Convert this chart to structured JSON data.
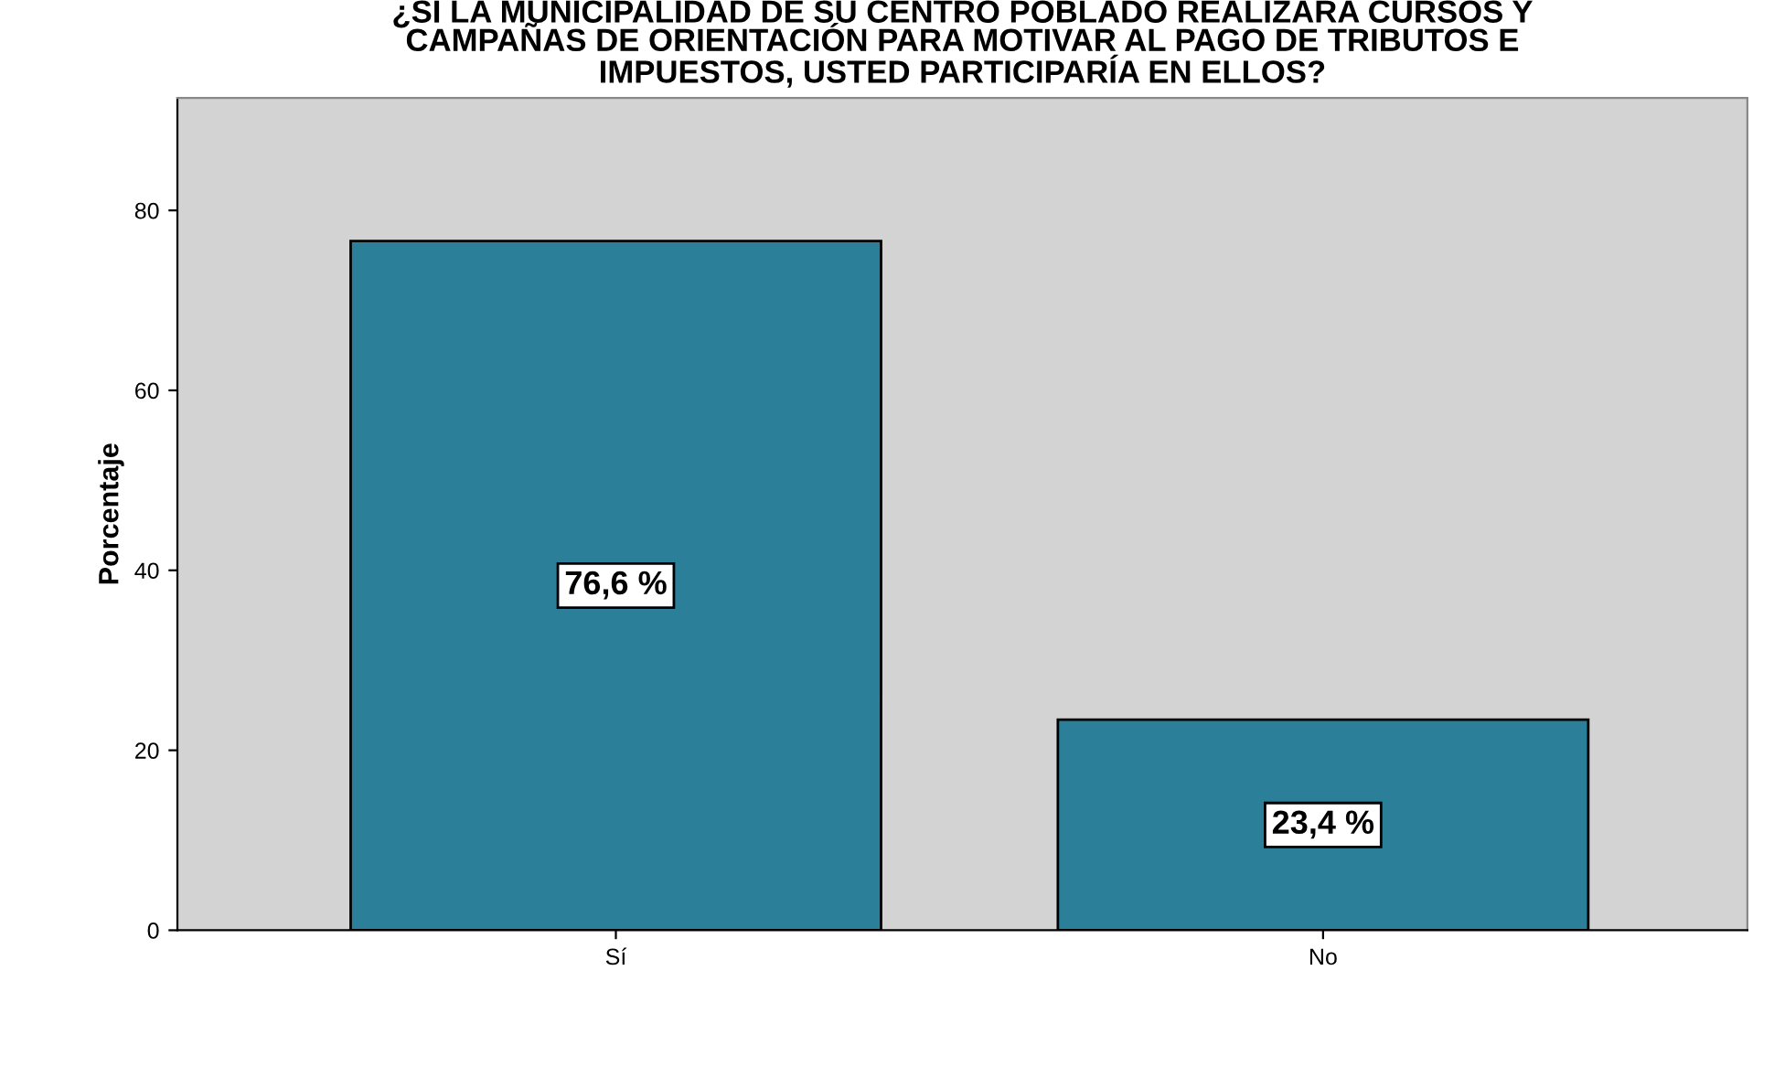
{
  "chart_data": {
    "type": "bar",
    "title": "¿SI LA MUNICIPALIDAD DE SU CENTRO POBLADO REALIZARA CURSOS Y\nCAMPAÑAS DE ORIENTACIÓN PARA MOTIVAR AL PAGO DE TRIBUTOS E\nIMPUESTOS, USTED PARTICIPARÍA EN ELLOS?",
    "ylabel": "Porcentaje",
    "categories": [
      "Sí",
      "No"
    ],
    "values": [
      76.6,
      23.4
    ],
    "value_labels": [
      "76,6 %",
      "23,4 %"
    ],
    "color": "#2b7f99",
    "ylim": [
      0,
      92.5
    ],
    "yticks": [
      0,
      20,
      40,
      60,
      80
    ],
    "grid": false,
    "legend": false
  }
}
